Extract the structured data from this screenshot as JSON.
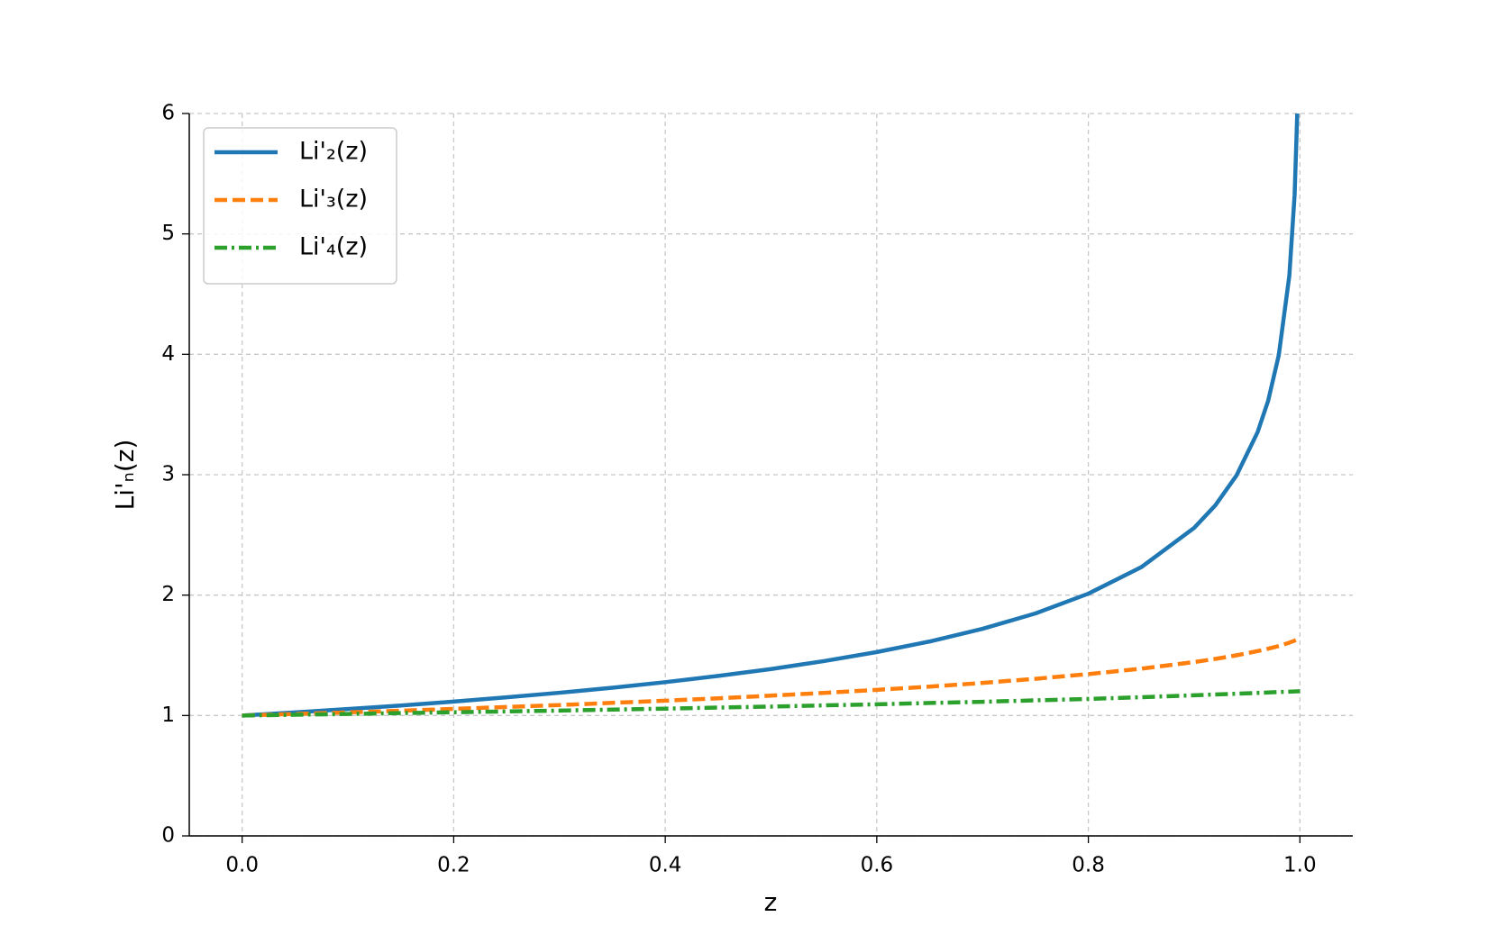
{
  "chart_data": {
    "type": "line",
    "xlabel": "z",
    "ylabel": "Li'ₙ(z)",
    "x": [
      0,
      0.05,
      0.1,
      0.15,
      0.2,
      0.25,
      0.3,
      0.35,
      0.4,
      0.45,
      0.5,
      0.55,
      0.6,
      0.65,
      0.7,
      0.75,
      0.8,
      0.85,
      0.9,
      0.92,
      0.94,
      0.96,
      0.97,
      0.98,
      0.99,
      0.995,
      0.9975,
      1.0
    ],
    "series": [
      {
        "name": "Li'₂(z)",
        "color": "#1f77b4",
        "linestyle": "solid",
        "values": [
          1,
          1.026,
          1.054,
          1.083,
          1.116,
          1.151,
          1.189,
          1.231,
          1.277,
          1.329,
          1.386,
          1.452,
          1.527,
          1.615,
          1.72,
          1.848,
          2.012,
          2.232,
          2.558,
          2.745,
          2.993,
          3.353,
          3.615,
          3.992,
          4.652,
          5.325,
          6.0,
          null
        ]
      },
      {
        "name": "Li'₃(z)",
        "color": "#ff7f0e",
        "linestyle": "dashed",
        "values": [
          1,
          1.013,
          1.026,
          1.04,
          1.055,
          1.071,
          1.087,
          1.105,
          1.123,
          1.143,
          1.165,
          1.188,
          1.213,
          1.24,
          1.271,
          1.305,
          1.344,
          1.389,
          1.444,
          1.47,
          1.5,
          1.535,
          1.555,
          1.577,
          1.605,
          1.622,
          1.632,
          1.645
        ]
      },
      {
        "name": "Li'₄(z)",
        "color": "#2ca02c",
        "linestyle": "dashdot",
        "values": [
          1,
          1.006,
          1.013,
          1.02,
          1.027,
          1.034,
          1.041,
          1.049,
          1.057,
          1.066,
          1.074,
          1.084,
          1.093,
          1.104,
          1.114,
          1.126,
          1.138,
          1.152,
          1.168,
          1.175,
          1.181,
          1.188,
          1.191,
          1.195,
          1.198,
          1.2,
          1.201,
          1.202
        ]
      }
    ],
    "xlim": [
      -0.05,
      1.05
    ],
    "ylim": [
      0,
      6
    ],
    "xticks": [
      {
        "value": 0,
        "label": "0.0"
      },
      0.2,
      0.4,
      0.6,
      0.8,
      {
        "value": 1,
        "label": "1.0"
      }
    ],
    "yticks": [
      0,
      1,
      2,
      3,
      4,
      5,
      6
    ],
    "grid": true,
    "legend": "upper left"
  }
}
